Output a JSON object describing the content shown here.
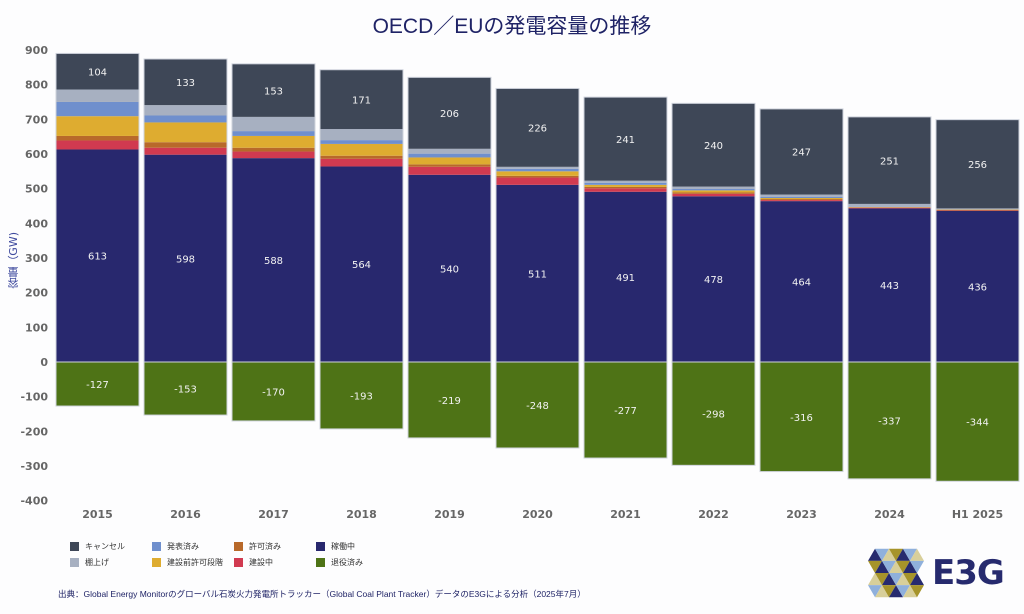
{
  "title": "OECD／EUの発電容量の推移",
  "source": "出典：Global Energy Monitorのグローバル石炭火力発電所トラッカー（Global Coal Plant Tracker）データのE3Gによる分析（2025年7月）",
  "logo": {
    "text": "E3G",
    "icon": "hexagon-triangle-logo-icon"
  },
  "chart_data": {
    "type": "bar",
    "stacked": true,
    "title": "OECD／EUの発電容量の推移",
    "xlabel": "",
    "ylabel": "容量（GW)",
    "ylim": [
      -400,
      900
    ],
    "yticks": [
      900,
      800,
      700,
      600,
      500,
      400,
      300,
      200,
      100,
      0,
      -100,
      -200,
      -300,
      -400
    ],
    "grid": false,
    "legend_position": "bottom-left",
    "categories": [
      "2015",
      "2016",
      "2017",
      "2018",
      "2019",
      "2020",
      "2021",
      "2022",
      "2023",
      "2024",
      "H1 2025"
    ],
    "series": [
      {
        "name": "退役済み",
        "key": "retired",
        "color": "#4e7316",
        "labeled": true,
        "values": [
          -127,
          -153,
          -170,
          -193,
          -219,
          -248,
          -277,
          -298,
          -316,
          -337,
          -344
        ]
      },
      {
        "name": "稼働中",
        "key": "operating",
        "color": "#28286e",
        "labeled": true,
        "values": [
          613,
          598,
          588,
          564,
          540,
          511,
          491,
          478,
          464,
          443,
          436
        ]
      },
      {
        "name": "建設中",
        "key": "construction",
        "color": "#d13a50",
        "labeled": false,
        "values": [
          26,
          20,
          19,
          22,
          23,
          21,
          10,
          7,
          3,
          2,
          1
        ]
      },
      {
        "name": "許可済み",
        "key": "permitted",
        "color": "#b8692a",
        "labeled": false,
        "values": [
          13,
          16,
          11,
          9,
          7,
          5,
          4,
          4,
          3,
          1,
          2
        ]
      },
      {
        "name": "建設前許可段階",
        "key": "pre_permit",
        "color": "#deac30",
        "labeled": false,
        "values": [
          57,
          57,
          34,
          34,
          20,
          13,
          6,
          6,
          3,
          1,
          1
        ]
      },
      {
        "name": "発表済み",
        "key": "announced",
        "color": "#6f8fcd",
        "labeled": false,
        "values": [
          41,
          20,
          14,
          11,
          11,
          7,
          6,
          4,
          3,
          1,
          1
        ]
      },
      {
        "name": "棚上げ",
        "key": "shelved",
        "color": "#a7b0c1",
        "labeled": false,
        "values": [
          36,
          30,
          41,
          32,
          14,
          6,
          6,
          7,
          7,
          8,
          2
        ]
      },
      {
        "name": "キャンセル",
        "key": "cancelled",
        "color": "#3e4757",
        "labeled": true,
        "values": [
          104,
          133,
          153,
          171,
          206,
          226,
          241,
          240,
          247,
          251,
          256
        ]
      }
    ],
    "legend": [
      {
        "name": "キャンセル",
        "color": "#3e4757"
      },
      {
        "name": "棚上げ",
        "color": "#a7b0c1"
      },
      {
        "name": "発表済み",
        "color": "#6f8fcd"
      },
      {
        "name": "建設前許可段階",
        "color": "#deac30"
      },
      {
        "name": "許可済み",
        "color": "#b8692a"
      },
      {
        "name": "建設中",
        "color": "#d13a50"
      },
      {
        "name": "稼働中",
        "color": "#28286e"
      },
      {
        "name": "退役済み",
        "color": "#4e7316"
      }
    ]
  }
}
